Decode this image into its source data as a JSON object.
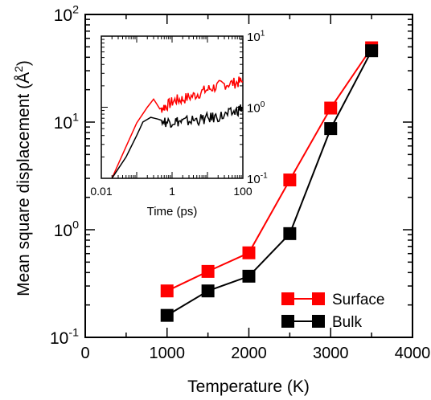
{
  "chart_data": {
    "type": "line",
    "xlabel": "Temperature (K)",
    "ylabel": "Mean square displacement (Å",
    "ylabel_sup": "2",
    "ylabel_close": ")",
    "xlim": [
      0,
      4000
    ],
    "ylim": [
      0.1,
      100
    ],
    "y_scale": "log",
    "x_ticks": [
      0,
      1000,
      2000,
      3000,
      4000
    ],
    "x_tick_labels": [
      "0",
      "1000",
      "2000",
      "3000",
      "4000"
    ],
    "y_ticks": [
      0.1,
      1,
      10,
      100
    ],
    "y_tick_labels": [
      {
        "base": "10",
        "exp": "-1"
      },
      {
        "base": "10",
        "exp": "0"
      },
      {
        "base": "10",
        "exp": "1"
      },
      {
        "base": "10",
        "exp": "2"
      }
    ],
    "legend_position": "bottom-right",
    "series": [
      {
        "name": "Surface",
        "color": "#ff0000",
        "marker": "square",
        "x": [
          1000,
          1500,
          2000,
          2500,
          3000,
          3500
        ],
        "y": [
          0.27,
          0.41,
          0.61,
          2.9,
          13.5,
          49
        ]
      },
      {
        "name": "Bulk",
        "color": "#000000",
        "marker": "square",
        "x": [
          1000,
          1500,
          2000,
          2500,
          3000,
          3500
        ],
        "y": [
          0.16,
          0.27,
          0.37,
          0.92,
          8.7,
          46
        ]
      }
    ],
    "inset": {
      "type": "line",
      "xlabel": "Time (ps)",
      "x_scale": "log",
      "y_scale": "log",
      "xlim": [
        0.01,
        100
      ],
      "ylim": [
        0.1,
        10
      ],
      "y_axis_side": "right",
      "x_tick_labels": [
        "0.01",
        "1",
        "100"
      ],
      "y_tick_labels": [
        {
          "base": "10",
          "exp": "-1"
        },
        {
          "base": "10",
          "exp": "0"
        },
        {
          "base": "10",
          "exp": "1"
        }
      ],
      "series": [
        {
          "color": "#ff0000",
          "x": [
            0.02,
            0.05,
            0.1,
            0.2,
            0.3,
            0.45,
            0.7,
            1.2,
            2,
            4,
            8,
            15,
            30,
            60,
            100
          ],
          "y": [
            0.1,
            0.28,
            0.6,
            1.0,
            1.3,
            0.95,
            1.05,
            1.25,
            1.3,
            1.45,
            1.7,
            1.9,
            2.1,
            2.2,
            2.3
          ]
        },
        {
          "color": "#000000",
          "x": [
            0.02,
            0.05,
            0.1,
            0.15,
            0.25,
            0.4,
            0.7,
            1.2,
            2,
            4,
            8,
            15,
            30,
            60,
            100
          ],
          "y": [
            0.1,
            0.2,
            0.4,
            0.62,
            0.72,
            0.68,
            0.62,
            0.64,
            0.62,
            0.66,
            0.68,
            0.72,
            0.76,
            0.86,
            1.0
          ]
        }
      ]
    }
  }
}
